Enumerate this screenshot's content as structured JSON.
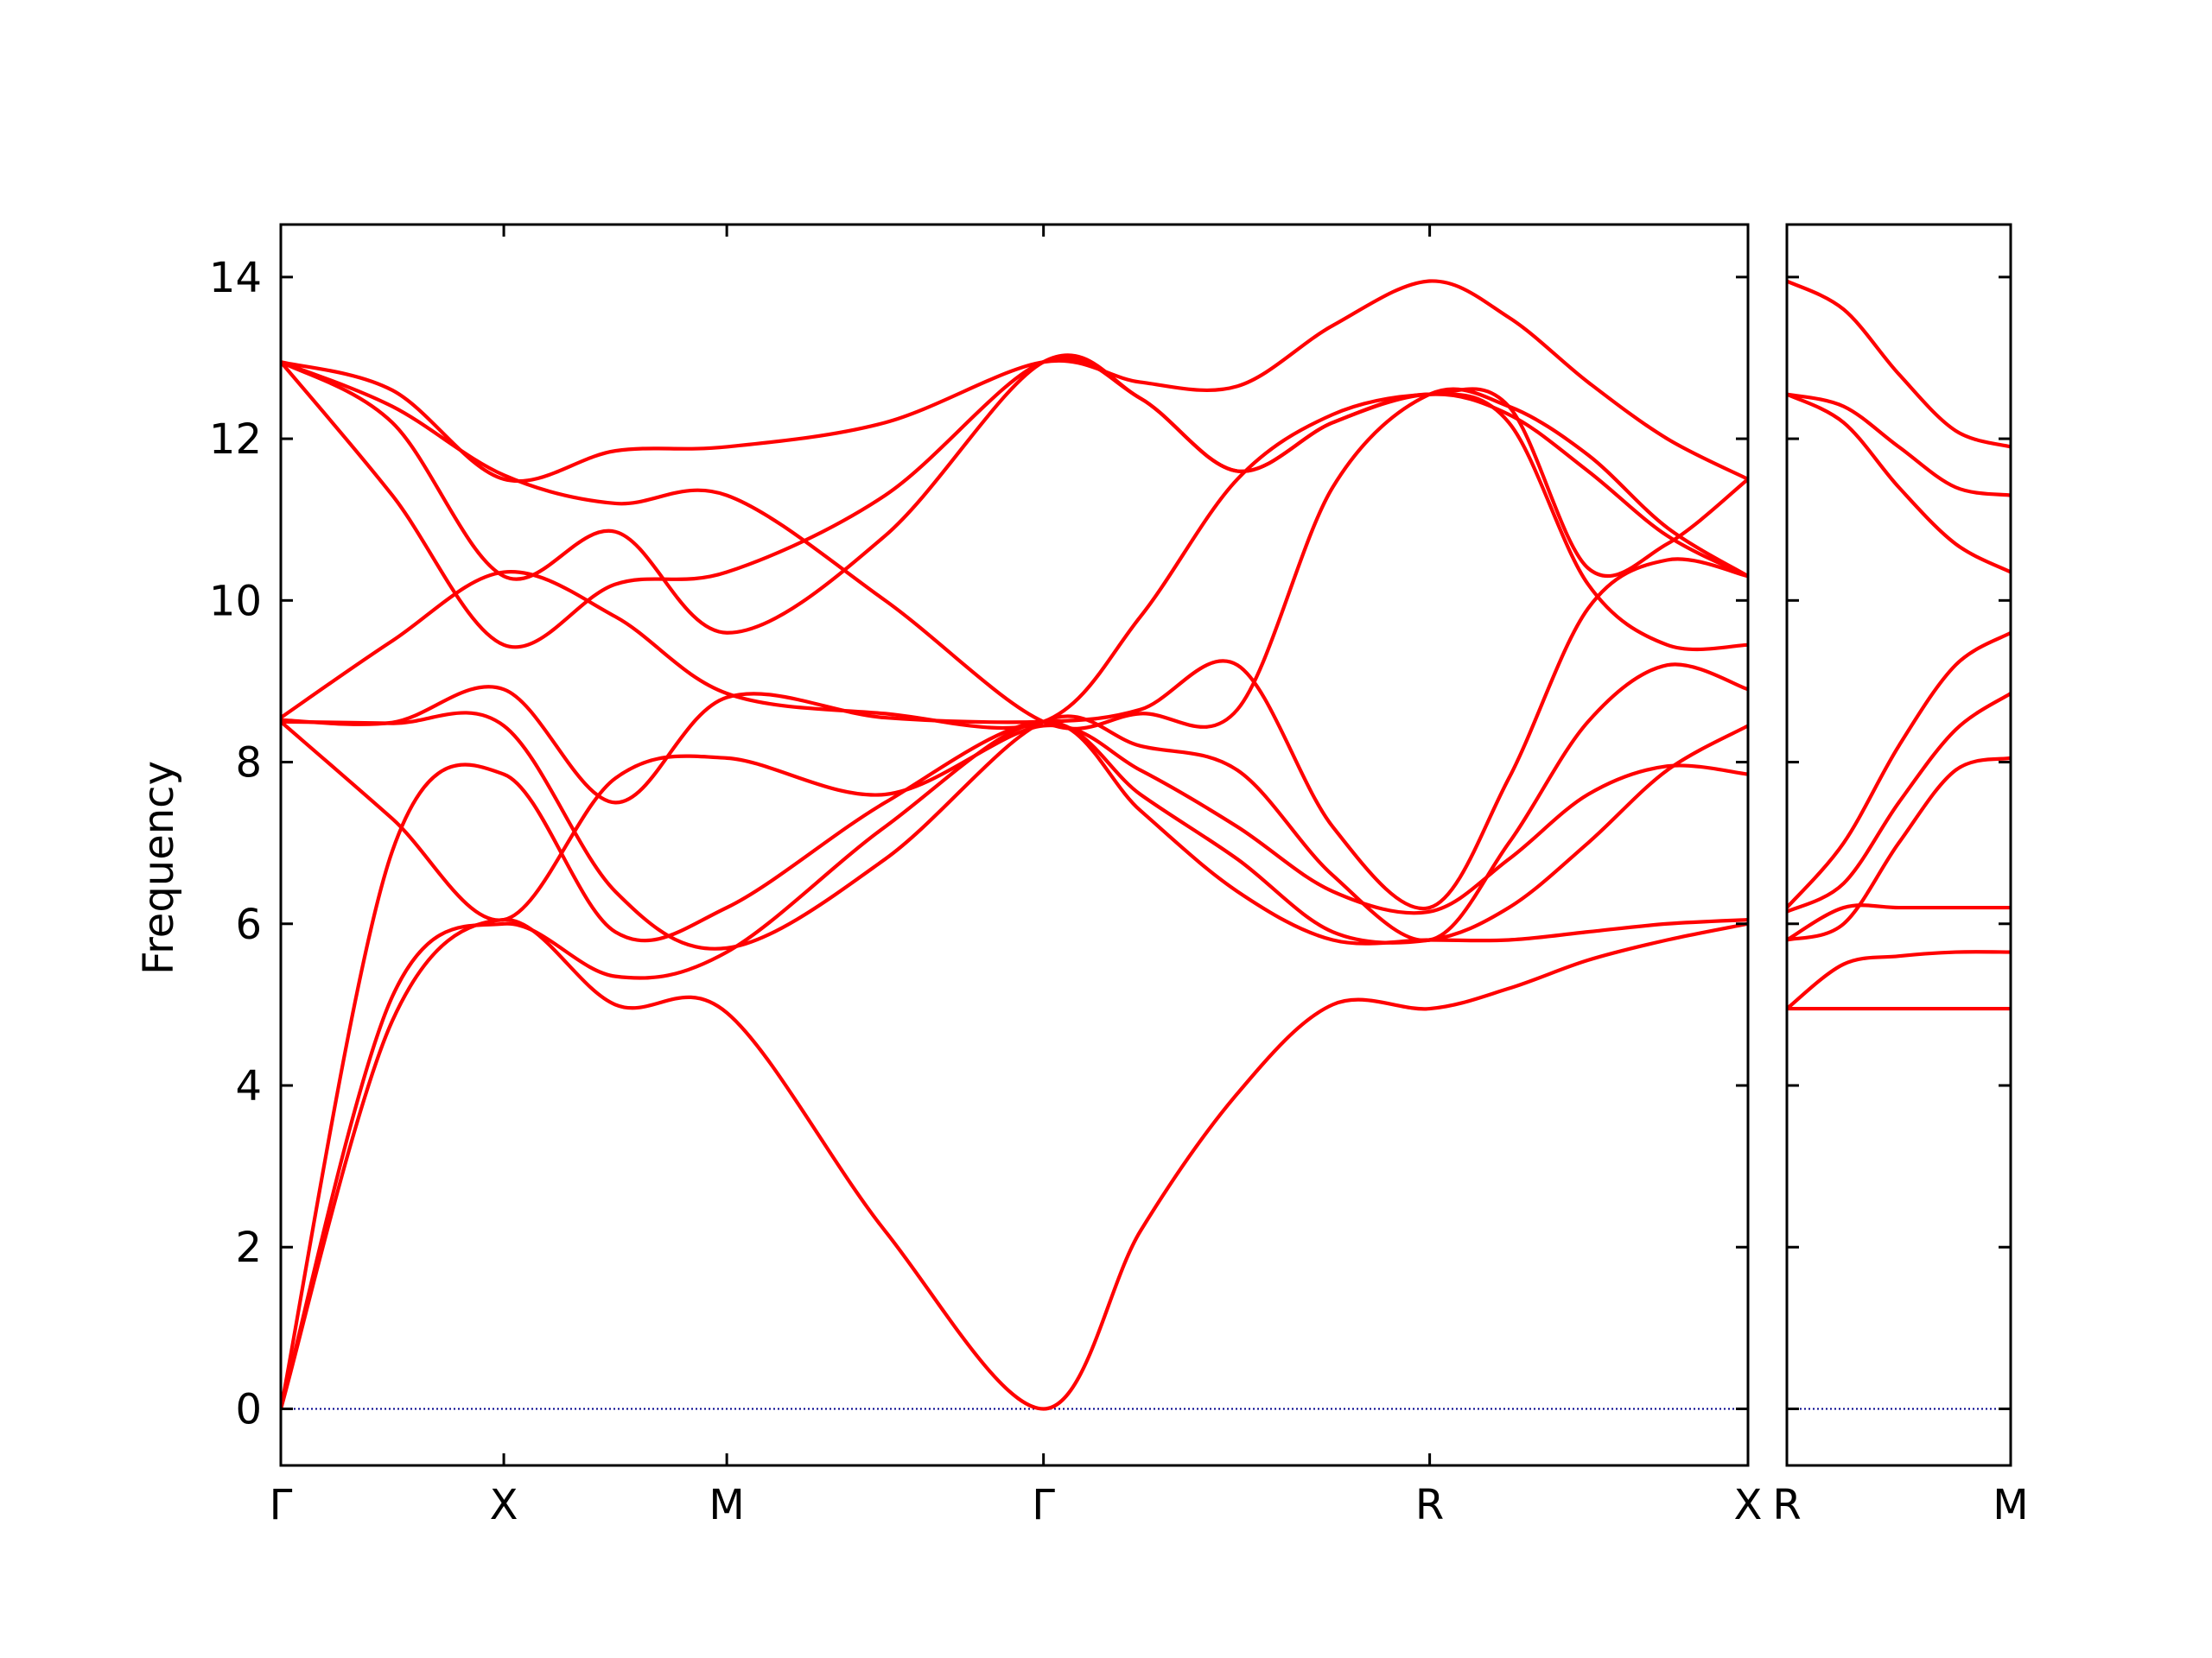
{
  "chart_data": {
    "type": "line",
    "title": "",
    "ylabel": "Frequency",
    "ylim": [
      -0.7,
      14.65
    ],
    "yticks": [
      0,
      2,
      4,
      6,
      8,
      10,
      12,
      14
    ],
    "line_color": "#ff0000",
    "zero_line_color": "#00008b",
    "grid": false,
    "panels": [
      {
        "xlim": [
          0,
          9.08
        ],
        "xticks": [
          {
            "x": 0,
            "label": "Γ"
          },
          {
            "x": 1.38,
            "label": "X"
          },
          {
            "x": 2.76,
            "label": "M"
          },
          {
            "x": 4.72,
            "label": "Γ"
          },
          {
            "x": 7.11,
            "label": "R"
          },
          {
            "x": 9.08,
            "label": "X"
          }
        ],
        "bands": [
          [
            [
              0,
              0
            ],
            [
              0.69,
              4.8
            ],
            [
              1.38,
              6.05
            ],
            [
              2.07,
              5.0
            ],
            [
              2.76,
              4.9
            ],
            [
              3.74,
              2.2
            ],
            [
              4.72,
              0
            ],
            [
              5.32,
              2.2
            ],
            [
              5.92,
              3.9
            ],
            [
              6.51,
              5.0
            ],
            [
              7.11,
              4.95
            ],
            [
              7.6,
              5.2
            ],
            [
              8.09,
              5.55
            ],
            [
              8.58,
              5.8
            ],
            [
              9.08,
              6.0
            ]
          ],
          [
            [
              0,
              0
            ],
            [
              0.69,
              5.1
            ],
            [
              1.38,
              6.0
            ],
            [
              2.07,
              5.35
            ],
            [
              2.76,
              5.65
            ],
            [
              3.74,
              7.2
            ],
            [
              4.72,
              8.5
            ],
            [
              5.32,
              7.4
            ],
            [
              5.92,
              6.4
            ],
            [
              6.51,
              5.8
            ],
            [
              7.11,
              5.8
            ],
            [
              7.6,
              5.8
            ],
            [
              8.09,
              5.9
            ],
            [
              8.58,
              6.0
            ],
            [
              9.08,
              6.05
            ]
          ],
          [
            [
              0,
              0
            ],
            [
              0.69,
              6.9
            ],
            [
              1.38,
              7.85
            ],
            [
              2.07,
              5.9
            ],
            [
              2.76,
              6.2
            ],
            [
              3.74,
              7.5
            ],
            [
              4.72,
              8.5
            ],
            [
              5.32,
              7.6
            ],
            [
              5.92,
              6.8
            ],
            [
              6.51,
              5.9
            ],
            [
              7.11,
              5.8
            ],
            [
              7.6,
              6.2
            ],
            [
              8.09,
              7.0
            ],
            [
              8.58,
              7.9
            ],
            [
              9.08,
              8.45
            ]
          ],
          [
            [
              0,
              8.5
            ],
            [
              0.69,
              7.3
            ],
            [
              1.38,
              6.05
            ],
            [
              2.07,
              7.8
            ],
            [
              2.76,
              8.05
            ],
            [
              3.74,
              7.6
            ],
            [
              4.72,
              8.45
            ],
            [
              5.32,
              7.9
            ],
            [
              5.92,
              7.2
            ],
            [
              6.51,
              6.4
            ],
            [
              7.11,
              6.15
            ],
            [
              7.6,
              6.8
            ],
            [
              8.09,
              7.6
            ],
            [
              8.58,
              7.95
            ],
            [
              9.08,
              7.85
            ]
          ],
          [
            [
              0,
              8.5
            ],
            [
              0.69,
              8.48
            ],
            [
              1.38,
              8.45
            ],
            [
              2.07,
              6.4
            ],
            [
              2.76,
              5.7
            ],
            [
              3.74,
              6.8
            ],
            [
              4.72,
              8.5
            ],
            [
              5.32,
              8.2
            ],
            [
              5.92,
              7.9
            ],
            [
              6.51,
              6.6
            ],
            [
              7.11,
              5.8
            ],
            [
              7.6,
              7.0
            ],
            [
              8.09,
              8.5
            ],
            [
              8.58,
              9.2
            ],
            [
              9.08,
              8.9
            ]
          ],
          [
            [
              0,
              8.52
            ],
            [
              0.69,
              8.49
            ],
            [
              1.38,
              8.9
            ],
            [
              2.07,
              7.5
            ],
            [
              2.76,
              8.8
            ],
            [
              3.74,
              8.55
            ],
            [
              4.72,
              8.5
            ],
            [
              5.32,
              8.65
            ],
            [
              5.92,
              9.2
            ],
            [
              6.51,
              7.2
            ],
            [
              7.11,
              6.2
            ],
            [
              7.6,
              7.8
            ],
            [
              8.09,
              9.9
            ],
            [
              8.58,
              10.5
            ],
            [
              9.08,
              10.3
            ]
          ],
          [
            [
              0,
              8.55
            ],
            [
              0.69,
              9.5
            ],
            [
              1.38,
              10.35
            ],
            [
              2.07,
              9.8
            ],
            [
              2.76,
              8.85
            ],
            [
              3.74,
              8.6
            ],
            [
              4.72,
              8.5
            ],
            [
              5.32,
              9.8
            ],
            [
              5.92,
              11.5
            ],
            [
              6.51,
              12.3
            ],
            [
              7.11,
              12.55
            ],
            [
              7.6,
              12.4
            ],
            [
              8.09,
              10.4
            ],
            [
              8.58,
              10.7
            ],
            [
              9.08,
              11.5
            ]
          ],
          [
            [
              0,
              12.95
            ],
            [
              0.69,
              11.3
            ],
            [
              1.38,
              9.45
            ],
            [
              2.07,
              10.2
            ],
            [
              2.76,
              10.35
            ],
            [
              3.74,
              11.3
            ],
            [
              4.72,
              12.95
            ],
            [
              5.32,
              12.5
            ],
            [
              5.92,
              11.6
            ],
            [
              6.51,
              12.2
            ],
            [
              7.11,
              12.55
            ],
            [
              7.6,
              12.2
            ],
            [
              8.09,
              10.2
            ],
            [
              8.58,
              9.45
            ],
            [
              9.08,
              9.45
            ]
          ],
          [
            [
              0,
              12.95
            ],
            [
              0.69,
              12.2
            ],
            [
              1.38,
              10.3
            ],
            [
              2.07,
              10.85
            ],
            [
              2.76,
              9.6
            ],
            [
              3.74,
              10.8
            ],
            [
              4.72,
              12.95
            ],
            [
              5.32,
              12.5
            ],
            [
              5.92,
              11.6
            ],
            [
              6.51,
              12.2
            ],
            [
              7.11,
              12.55
            ],
            [
              7.6,
              12.3
            ],
            [
              8.09,
              11.6
            ],
            [
              8.58,
              10.8
            ],
            [
              9.08,
              10.3
            ]
          ],
          [
            [
              0,
              12.95
            ],
            [
              0.69,
              12.4
            ],
            [
              1.38,
              11.55
            ],
            [
              2.07,
              11.2
            ],
            [
              2.76,
              11.3
            ],
            [
              3.74,
              10.0
            ],
            [
              4.72,
              8.5
            ],
            [
              5.32,
              8.6
            ],
            [
              5.92,
              8.65
            ],
            [
              6.51,
              11.4
            ],
            [
              7.11,
              12.55
            ],
            [
              7.6,
              12.4
            ],
            [
              8.09,
              11.8
            ],
            [
              8.58,
              10.9
            ],
            [
              9.08,
              10.3
            ]
          ],
          [
            [
              0,
              12.95
            ],
            [
              0.69,
              12.6
            ],
            [
              1.38,
              11.5
            ],
            [
              2.07,
              11.85
            ],
            [
              2.76,
              11.9
            ],
            [
              3.74,
              12.2
            ],
            [
              4.72,
              12.95
            ],
            [
              5.32,
              12.7
            ],
            [
              5.92,
              12.65
            ],
            [
              6.51,
              13.4
            ],
            [
              7.11,
              13.95
            ],
            [
              7.6,
              13.5
            ],
            [
              8.09,
              12.7
            ],
            [
              8.58,
              12.0
            ],
            [
              9.08,
              11.5
            ]
          ]
        ]
      },
      {
        "xlim": [
          0,
          1.38
        ],
        "xticks": [
          {
            "x": 0,
            "label": "R"
          },
          {
            "x": 1.38,
            "label": "M"
          }
        ],
        "bands": [
          [
            [
              0,
              4.95
            ],
            [
              0.35,
              4.95
            ],
            [
              0.69,
              4.95
            ],
            [
              1.04,
              4.95
            ],
            [
              1.38,
              4.95
            ]
          ],
          [
            [
              0,
              4.95
            ],
            [
              0.35,
              5.5
            ],
            [
              0.69,
              5.6
            ],
            [
              1.04,
              5.65
            ],
            [
              1.38,
              5.65
            ]
          ],
          [
            [
              0,
              5.8
            ],
            [
              0.35,
              6.2
            ],
            [
              0.69,
              6.2
            ],
            [
              1.04,
              6.2
            ],
            [
              1.38,
              6.2
            ]
          ],
          [
            [
              0,
              5.8
            ],
            [
              0.35,
              6.0
            ],
            [
              0.69,
              7.0
            ],
            [
              1.04,
              7.9
            ],
            [
              1.38,
              8.05
            ]
          ],
          [
            [
              0,
              6.15
            ],
            [
              0.35,
              6.5
            ],
            [
              0.69,
              7.5
            ],
            [
              1.04,
              8.4
            ],
            [
              1.38,
              8.85
            ]
          ],
          [
            [
              0,
              6.2
            ],
            [
              0.35,
              7.0
            ],
            [
              0.69,
              8.2
            ],
            [
              1.04,
              9.2
            ],
            [
              1.38,
              9.6
            ]
          ],
          [
            [
              0,
              12.55
            ],
            [
              0.35,
              12.2
            ],
            [
              0.69,
              11.4
            ],
            [
              1.04,
              10.7
            ],
            [
              1.38,
              10.35
            ]
          ],
          [
            [
              0,
              12.55
            ],
            [
              0.35,
              12.4
            ],
            [
              0.69,
              11.9
            ],
            [
              1.04,
              11.4
            ],
            [
              1.38,
              11.3
            ]
          ],
          [
            [
              0,
              13.95
            ],
            [
              0.35,
              13.6
            ],
            [
              0.69,
              12.8
            ],
            [
              1.04,
              12.1
            ],
            [
              1.38,
              11.9
            ]
          ]
        ]
      }
    ]
  }
}
